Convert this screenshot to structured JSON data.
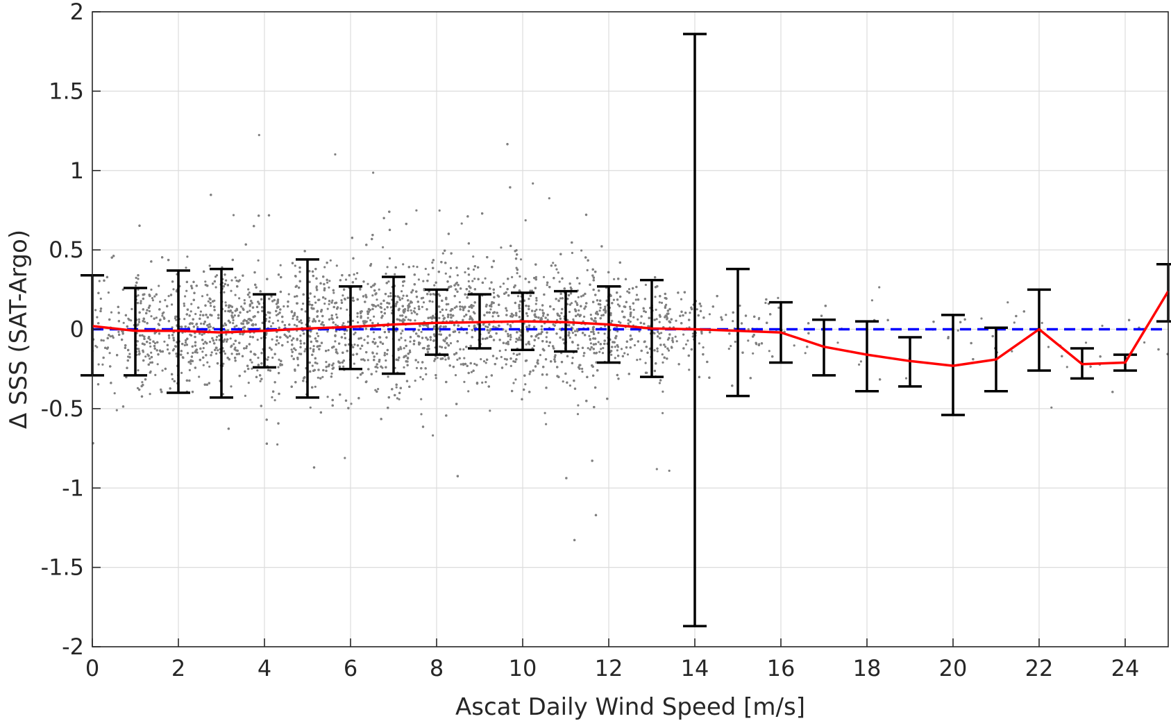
{
  "chart_data": {
    "type": "scatter",
    "xlabel": "Ascat Daily Wind Speed [m/s]",
    "ylabel": "Δ SSS (SAT-Argo)",
    "xlim": [
      0,
      25
    ],
    "ylim": [
      -2,
      2
    ],
    "x_ticks": [
      0,
      2,
      4,
      6,
      8,
      10,
      12,
      14,
      16,
      18,
      20,
      22,
      24
    ],
    "x_tick_labels": [
      "0",
      "2",
      "4",
      "6",
      "8",
      "10",
      "12",
      "14",
      "16",
      "18",
      "20",
      "22",
      "24"
    ],
    "y_ticks": [
      -2,
      -1.5,
      -1,
      -0.5,
      0,
      0.5,
      1,
      1.5,
      2
    ],
    "y_tick_labels": [
      "-2",
      "-1.5",
      "-1",
      "-0.5",
      "0",
      "0.5",
      "1",
      "1.5",
      "2"
    ],
    "grid": true,
    "colors": {
      "scatter": "#808080",
      "mean_line": "#ff0000",
      "zero_line": "#0000ff",
      "error_bars": "#000000",
      "axes": "#262626",
      "grid": "#dcdcdc"
    },
    "reference_line": {
      "y": 0,
      "style": "dashed"
    },
    "mean_curve": {
      "x": [
        0,
        1,
        2,
        3,
        4,
        5,
        6,
        7,
        8,
        9,
        10,
        11,
        12,
        13,
        14,
        15,
        16,
        17,
        18,
        19,
        20,
        21,
        22,
        23,
        24,
        25
      ],
      "y": [
        0.02,
        -0.01,
        -0.01,
        -0.02,
        -0.01,
        0.005,
        0.015,
        0.03,
        0.04,
        0.045,
        0.05,
        0.045,
        0.03,
        0.005,
        0.0,
        -0.01,
        -0.02,
        -0.11,
        -0.16,
        -0.2,
        -0.23,
        -0.19,
        0.0,
        -0.22,
        -0.21,
        0.24
      ]
    },
    "error_bars": {
      "x": [
        0,
        1,
        2,
        3,
        4,
        5,
        6,
        7,
        8,
        9,
        10,
        11,
        12,
        13,
        14,
        15,
        16,
        17,
        18,
        19,
        20,
        21,
        22,
        23,
        24,
        25
      ],
      "lower": [
        -0.29,
        -0.29,
        -0.4,
        -0.43,
        -0.24,
        -0.43,
        -0.25,
        -0.28,
        -0.16,
        -0.12,
        -0.13,
        -0.14,
        -0.21,
        -0.3,
        -1.87,
        -0.42,
        -0.21,
        -0.29,
        -0.39,
        -0.36,
        -0.54,
        -0.39,
        -0.26,
        -0.31,
        -0.26,
        0.05
      ],
      "upper": [
        0.34,
        0.26,
        0.37,
        0.38,
        0.22,
        0.44,
        0.27,
        0.33,
        0.25,
        0.22,
        0.23,
        0.24,
        0.27,
        0.31,
        1.86,
        0.38,
        0.17,
        0.06,
        0.05,
        -0.05,
        0.09,
        0.01,
        0.25,
        -0.12,
        -0.16,
        0.41
      ]
    },
    "scatter_model": {
      "note": "dense cloud of several thousand grey points",
      "center_by_x": [
        [
          0,
          0.0
        ],
        [
          6,
          0.02
        ],
        [
          10,
          0.05
        ],
        [
          13,
          0.0
        ],
        [
          14,
          0.0
        ],
        [
          25,
          -0.1
        ]
      ],
      "spread_by_x": [
        [
          0,
          0.15
        ],
        [
          3,
          0.2
        ],
        [
          7,
          0.22
        ],
        [
          11,
          0.18
        ],
        [
          13,
          0.14
        ],
        [
          14,
          0.12
        ],
        [
          16,
          0.1
        ],
        [
          20,
          0.12
        ],
        [
          25,
          0.12
        ]
      ]
    }
  }
}
